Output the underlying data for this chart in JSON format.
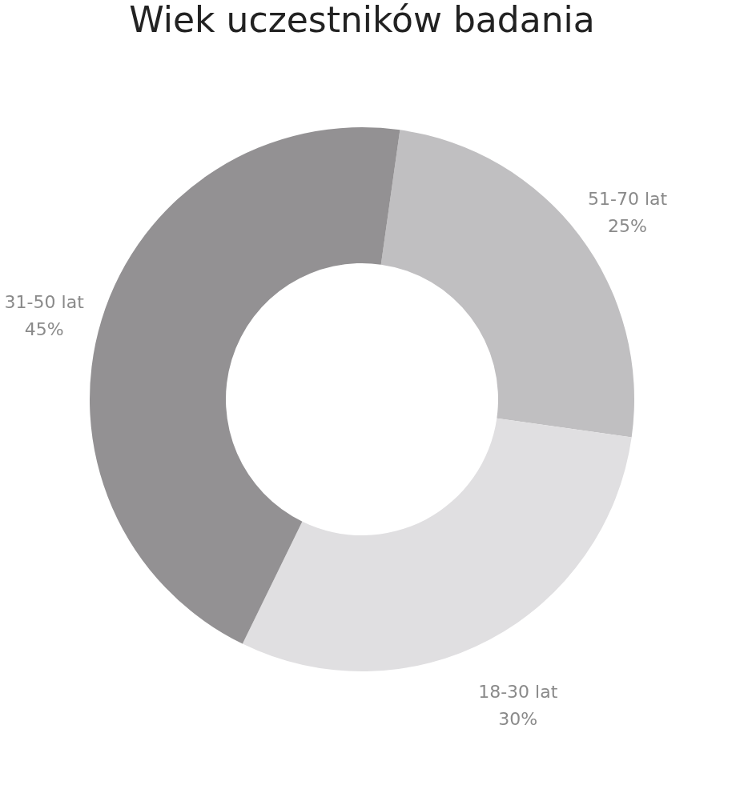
{
  "chart_data": {
    "type": "donut",
    "title": "Wiek uczestników badania",
    "categories": [
      "51-70 lat",
      "18-30 lat",
      "31-50 lat"
    ],
    "values": [
      25,
      30,
      45
    ],
    "value_labels": [
      "25%",
      "30%",
      "45%"
    ],
    "colors": [
      "#c0bfc1",
      "#e0dfe1",
      "#939193"
    ],
    "legend": false
  }
}
